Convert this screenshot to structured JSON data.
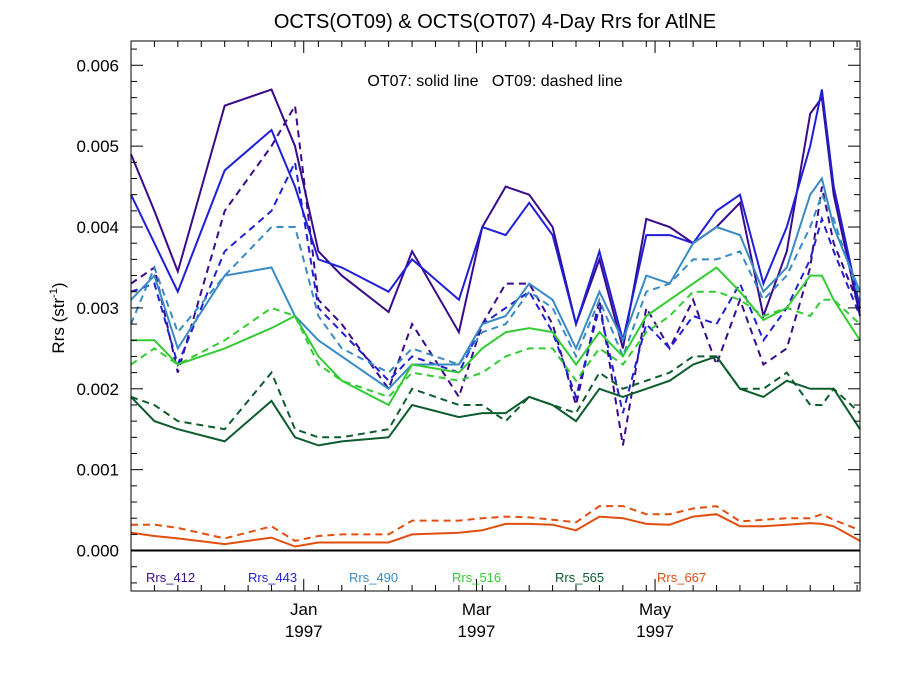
{
  "chart_data": {
    "type": "line",
    "title": "OCTS(OT09) & OCTS(OT07) 4-Day Rrs for AtlNE",
    "ylabel_main": "Rrs (str",
    "ylabel_sup": "-1",
    "ylabel_end": ")",
    "annotation": "OT07: solid line   OT09: dashed line",
    "ylim": [
      -0.0005,
      0.0063
    ],
    "yticks": [
      0.0,
      0.001,
      0.002,
      0.003,
      0.004,
      0.005,
      0.006
    ],
    "ytick_labels": [
      "0.000",
      "0.001",
      "0.002",
      "0.003",
      "0.004",
      "0.005",
      "0.006"
    ],
    "xlim": [
      "1996-11-03",
      "1997-07-10"
    ],
    "xticks": [
      {
        "date": "1997-01-01",
        "month": "Jan",
        "year": "1997"
      },
      {
        "date": "1997-03-01",
        "month": "Mar",
        "year": "1997"
      },
      {
        "date": "1997-05-01",
        "month": "May",
        "year": "1997"
      }
    ],
    "zero_line": true,
    "x": [
      "1996-11-03",
      "1996-11-11",
      "1996-11-19",
      "1996-12-05",
      "1996-12-21",
      "1996-12-29",
      "1997-01-06",
      "1997-01-14",
      "1997-01-30",
      "1997-02-07",
      "1997-02-23",
      "1997-03-03",
      "1997-03-11",
      "1997-03-19",
      "1997-03-27",
      "1997-04-04",
      "1997-04-12",
      "1997-04-20",
      "1997-04-28",
      "1997-05-06",
      "1997-05-14",
      "1997-05-22",
      "1997-05-30",
      "1997-06-07",
      "1997-06-15",
      "1997-06-23",
      "1997-06-27",
      "1997-07-01",
      "1997-07-10"
    ],
    "series": [
      {
        "name": "Rrs_412",
        "color": "#3a0a8c",
        "dash": false,
        "values": [
          0.0049,
          0.0042,
          0.00345,
          0.0055,
          0.0057,
          0.005,
          0.0037,
          0.0034,
          0.00295,
          0.0037,
          0.0027,
          0.004,
          0.0045,
          0.0044,
          0.004,
          0.0028,
          0.0036,
          0.0025,
          0.0041,
          0.004,
          0.0038,
          0.004,
          0.0043,
          0.0029,
          0.0037,
          0.0054,
          0.0056,
          0.0044,
          0.0029
        ]
      },
      {
        "name": "Rrs_412",
        "color": "#3a0a8c",
        "dash": true,
        "values": [
          0.0033,
          0.0035,
          0.0022,
          0.0042,
          0.005,
          0.0055,
          0.0031,
          0.0028,
          0.002,
          0.0028,
          0.0019,
          0.0028,
          0.0033,
          0.0033,
          0.0028,
          0.0018,
          0.0031,
          0.0013,
          0.003,
          0.0025,
          0.0031,
          0.0023,
          0.0031,
          0.0023,
          0.0025,
          0.0035,
          0.0045,
          0.0038,
          0.003
        ]
      },
      {
        "name": "Rrs_443",
        "color": "#1f1fd6",
        "dash": false,
        "values": [
          0.0044,
          0.0038,
          0.0032,
          0.0047,
          0.0052,
          0.0045,
          0.0036,
          0.0035,
          0.0032,
          0.0036,
          0.0031,
          0.004,
          0.0039,
          0.0043,
          0.0039,
          0.0028,
          0.0037,
          0.0026,
          0.0039,
          0.0039,
          0.0038,
          0.0042,
          0.0044,
          0.0033,
          0.004,
          0.005,
          0.0057,
          0.0045,
          0.003
        ]
      },
      {
        "name": "Rrs_443",
        "color": "#1f1fd6",
        "dash": true,
        "values": [
          0.0032,
          0.0033,
          0.0023,
          0.0037,
          0.0042,
          0.0048,
          0.003,
          0.0027,
          0.0021,
          0.0024,
          0.0022,
          0.0028,
          0.003,
          0.0032,
          0.0027,
          0.0019,
          0.003,
          0.0017,
          0.0028,
          0.0025,
          0.0029,
          0.0028,
          0.0033,
          0.0026,
          0.003,
          0.0036,
          0.0041,
          0.0037,
          0.0029
        ]
      },
      {
        "name": "Rrs_490",
        "color": "#3a8ac4",
        "dash": false,
        "values": [
          0.0031,
          0.0034,
          0.0025,
          0.0034,
          0.0035,
          0.0029,
          0.0026,
          0.0024,
          0.002,
          0.0023,
          0.0023,
          0.0028,
          0.0029,
          0.0033,
          0.0031,
          0.0025,
          0.0032,
          0.0026,
          0.0034,
          0.0033,
          0.0038,
          0.004,
          0.0039,
          0.0032,
          0.0035,
          0.0044,
          0.0046,
          0.004,
          0.0032
        ]
      },
      {
        "name": "Rrs_490",
        "color": "#3a8ac4",
        "dash": true,
        "values": [
          0.0028,
          0.0035,
          0.0027,
          0.0034,
          0.004,
          0.004,
          0.0029,
          0.0025,
          0.0022,
          0.0025,
          0.0023,
          0.0027,
          0.0028,
          0.0032,
          0.003,
          0.0024,
          0.0031,
          0.0024,
          0.0032,
          0.0033,
          0.0036,
          0.0036,
          0.0037,
          0.0031,
          0.0034,
          0.004,
          0.0044,
          0.0041,
          0.0031
        ]
      },
      {
        "name": "Rrs_516",
        "color": "#33cc33",
        "dash": false,
        "values": [
          0.0026,
          0.0026,
          0.0023,
          0.0025,
          0.00275,
          0.0029,
          0.0024,
          0.0021,
          0.0018,
          0.0023,
          0.0022,
          0.0025,
          0.0027,
          0.00275,
          0.0027,
          0.0023,
          0.0027,
          0.0024,
          0.0029,
          0.0031,
          0.0033,
          0.0035,
          0.0032,
          0.00285,
          0.003,
          0.0034,
          0.0034,
          0.0031,
          0.0026
        ]
      },
      {
        "name": "Rrs_516",
        "color": "#33cc33",
        "dash": true,
        "values": [
          0.0023,
          0.0025,
          0.0023,
          0.0026,
          0.003,
          0.0029,
          0.0023,
          0.0021,
          0.0019,
          0.0022,
          0.0021,
          0.0022,
          0.0024,
          0.0025,
          0.0025,
          0.0021,
          0.0025,
          0.0023,
          0.0027,
          0.0029,
          0.0032,
          0.0032,
          0.0031,
          0.0029,
          0.003,
          0.0029,
          0.0031,
          0.0031,
          0.0028
        ]
      },
      {
        "name": "Rrs_565",
        "color": "#0d5c2e",
        "dash": false,
        "values": [
          0.0019,
          0.0016,
          0.0015,
          0.00135,
          0.00185,
          0.0014,
          0.0013,
          0.00135,
          0.0014,
          0.0018,
          0.00165,
          0.0017,
          0.0017,
          0.0019,
          0.0018,
          0.0016,
          0.002,
          0.0019,
          0.002,
          0.0021,
          0.0023,
          0.0024,
          0.002,
          0.0019,
          0.0021,
          0.002,
          0.002,
          0.002,
          0.0015
        ]
      },
      {
        "name": "Rrs_565",
        "color": "#0d5c2e",
        "dash": true,
        "values": [
          0.0019,
          0.0018,
          0.0016,
          0.0015,
          0.0022,
          0.0015,
          0.0014,
          0.0014,
          0.0015,
          0.002,
          0.0018,
          0.0018,
          0.0016,
          0.0019,
          0.0018,
          0.0017,
          0.0022,
          0.002,
          0.0021,
          0.0022,
          0.0024,
          0.0024,
          0.002,
          0.002,
          0.0022,
          0.0018,
          0.0018,
          0.002,
          0.0017
        ]
      },
      {
        "name": "Rrs_667",
        "color": "#e04e10",
        "dash": false,
        "values": [
          0.00022,
          0.00018,
          0.00015,
          8e-05,
          0.00016,
          5e-05,
          0.0001,
          0.0001,
          0.0001,
          0.0002,
          0.00022,
          0.00025,
          0.00033,
          0.00033,
          0.00032,
          0.00025,
          0.00042,
          0.0004,
          0.00033,
          0.00032,
          0.00042,
          0.00045,
          0.0003,
          0.0003,
          0.00032,
          0.00034,
          0.00033,
          0.0003,
          0.00012
        ]
      },
      {
        "name": "Rrs_667",
        "color": "#e04e10",
        "dash": true,
        "values": [
          0.00032,
          0.00032,
          0.00028,
          0.00015,
          0.0003,
          0.00012,
          0.00018,
          0.0002,
          0.0002,
          0.00037,
          0.00037,
          0.0004,
          0.00042,
          0.00041,
          0.00038,
          0.00035,
          0.00055,
          0.00055,
          0.00045,
          0.00045,
          0.00052,
          0.00055,
          0.00036,
          0.00038,
          0.0004,
          0.0004,
          0.00045,
          0.00038,
          0.00025
        ]
      }
    ],
    "legend": [
      {
        "label": "Rrs_412",
        "color": "#3a0a8c"
      },
      {
        "label": "Rrs_443",
        "color": "#1f1fd6"
      },
      {
        "label": "Rrs_490",
        "color": "#3a8ac4"
      },
      {
        "label": "Rrs_516",
        "color": "#33cc33"
      },
      {
        "label": "Rrs_565",
        "color": "#0d5c2e"
      },
      {
        "label": "Rrs_667",
        "color": "#e04e10"
      }
    ],
    "legend_position": "bottom"
  }
}
